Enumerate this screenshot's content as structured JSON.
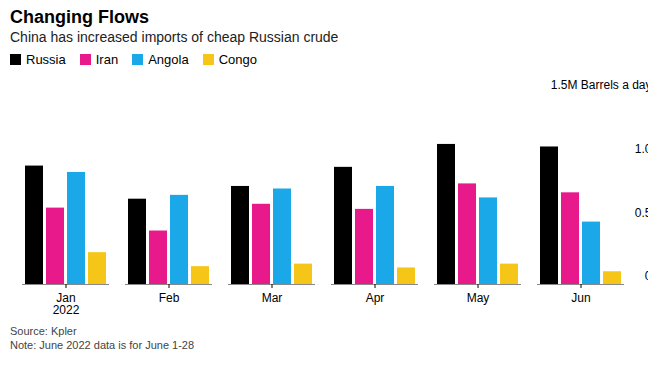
{
  "chart_data": {
    "type": "bar",
    "title": "Changing Flows",
    "subtitle": "China has increased imports of cheap Russian crude",
    "categories": [
      "Jan\n2022",
      "Feb",
      "Mar",
      "Apr",
      "May",
      "Jun"
    ],
    "series": [
      {
        "name": "Russia",
        "color": "#000000",
        "values": [
          0.93,
          0.67,
          0.77,
          0.92,
          1.1,
          1.08
        ]
      },
      {
        "name": "Iran",
        "color": "#e8198b",
        "values": [
          0.6,
          0.42,
          0.63,
          0.59,
          0.79,
          0.72
        ]
      },
      {
        "name": "Angola",
        "color": "#1ba8e8",
        "values": [
          0.88,
          0.7,
          0.75,
          0.77,
          0.68,
          0.49
        ]
      },
      {
        "name": "Congo",
        "color": "#f5c518",
        "values": [
          0.25,
          0.14,
          0.16,
          0.13,
          0.16,
          0.1
        ]
      }
    ],
    "ylim": [
      0,
      1.5
    ],
    "yticks": [
      0,
      0.5,
      {
        "value": 1,
        "label": "1.0"
      },
      {
        "value": 1.5,
        "label": "1.5M Barrels a day"
      }
    ],
    "grid": false,
    "legend": "top-left",
    "caption": [
      "Source: Kpler",
      "Note: June 2022 data is for June 1-28"
    ]
  }
}
